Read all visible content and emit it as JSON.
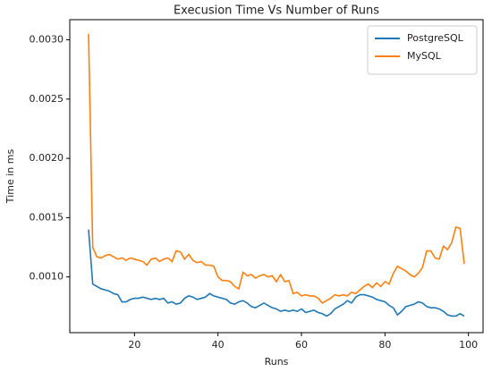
{
  "chart_data": {
    "type": "line",
    "title": "Execusion Time Vs Number of Runs",
    "xlabel": "Runs",
    "ylabel": "Time in ms",
    "x": [
      9,
      10,
      11,
      12,
      13,
      14,
      15,
      16,
      17,
      18,
      19,
      20,
      21,
      22,
      23,
      24,
      25,
      26,
      27,
      28,
      29,
      30,
      31,
      32,
      33,
      34,
      35,
      36,
      37,
      38,
      39,
      40,
      41,
      42,
      43,
      44,
      45,
      46,
      47,
      48,
      49,
      50,
      51,
      52,
      53,
      54,
      55,
      56,
      57,
      58,
      59,
      60,
      61,
      62,
      63,
      64,
      65,
      66,
      67,
      68,
      69,
      70,
      71,
      72,
      73,
      74,
      75,
      76,
      77,
      78,
      79,
      80,
      81,
      82,
      83,
      84,
      85,
      86,
      87,
      88,
      89,
      90,
      91,
      92,
      93,
      94,
      95,
      96,
      97,
      98,
      99
    ],
    "series": [
      {
        "name": "PostgreSQL",
        "color": "#1f77b4",
        "values": [
          0.0014,
          0.00094,
          0.00092,
          0.0009,
          0.00089,
          0.00088,
          0.00086,
          0.00085,
          0.00079,
          0.00079,
          0.00081,
          0.00082,
          0.00082,
          0.00083,
          0.00082,
          0.00081,
          0.00082,
          0.00081,
          0.00082,
          0.00078,
          0.00079,
          0.00077,
          0.00078,
          0.00082,
          0.00084,
          0.00083,
          0.00081,
          0.00082,
          0.00083,
          0.00086,
          0.00084,
          0.00083,
          0.00082,
          0.00081,
          0.00078,
          0.00077,
          0.00079,
          0.0008,
          0.00078,
          0.00075,
          0.00074,
          0.00076,
          0.00078,
          0.00076,
          0.00074,
          0.00073,
          0.00071,
          0.00072,
          0.00071,
          0.00072,
          0.00071,
          0.00073,
          0.0007,
          0.00071,
          0.00072,
          0.0007,
          0.00069,
          0.00067,
          0.00069,
          0.00073,
          0.00075,
          0.00077,
          0.0008,
          0.00078,
          0.00083,
          0.00085,
          0.00085,
          0.00084,
          0.00083,
          0.00081,
          0.0008,
          0.00079,
          0.00076,
          0.00074,
          0.00068,
          0.00071,
          0.00075,
          0.00076,
          0.00077,
          0.00079,
          0.00078,
          0.00075,
          0.00074,
          0.00074,
          0.00073,
          0.00071,
          0.00068,
          0.00067,
          0.00067,
          0.00069,
          0.00067
        ]
      },
      {
        "name": "MySQL",
        "color": "#ff7f0e",
        "values": [
          0.00305,
          0.00125,
          0.00117,
          0.00116,
          0.00118,
          0.00119,
          0.00117,
          0.00115,
          0.00116,
          0.00114,
          0.00116,
          0.00115,
          0.00114,
          0.00113,
          0.0011,
          0.00115,
          0.00116,
          0.00113,
          0.00115,
          0.00116,
          0.00113,
          0.00122,
          0.00121,
          0.00115,
          0.00119,
          0.00114,
          0.00112,
          0.00113,
          0.0011,
          0.0011,
          0.00109,
          0.001,
          0.00097,
          0.00097,
          0.00096,
          0.00092,
          0.0009,
          0.00104,
          0.00101,
          0.00102,
          0.00099,
          0.00101,
          0.00102,
          0.001,
          0.00101,
          0.00096,
          0.00102,
          0.00096,
          0.00097,
          0.00086,
          0.00087,
          0.00084,
          0.00085,
          0.00084,
          0.00084,
          0.00082,
          0.00078,
          0.0008,
          0.00082,
          0.00085,
          0.00084,
          0.00085,
          0.00084,
          0.00087,
          0.00086,
          0.00089,
          0.00092,
          0.00094,
          0.00091,
          0.00095,
          0.00092,
          0.00096,
          0.00094,
          0.00103,
          0.00109,
          0.00107,
          0.00105,
          0.00102,
          0.001,
          0.00103,
          0.00108,
          0.00122,
          0.00122,
          0.00116,
          0.00115,
          0.00126,
          0.00123,
          0.00129,
          0.00142,
          0.00141,
          0.00111
        ]
      }
    ],
    "xlim": [
      4.5,
      103.5
    ],
    "xticks": [
      20,
      40,
      60,
      80,
      100
    ],
    "ylim": [
      0.00053,
      0.00317
    ],
    "yticks": [
      {
        "value": 0.001,
        "label": "0.0010"
      },
      {
        "value": 0.0015,
        "label": "0.0015"
      },
      {
        "value": 0.002,
        "label": "0.0020"
      },
      {
        "value": 0.0025,
        "label": "0.0025"
      },
      {
        "value": 0.003,
        "label": "0.0030"
      }
    ],
    "legend": "upper right",
    "grid": false
  }
}
